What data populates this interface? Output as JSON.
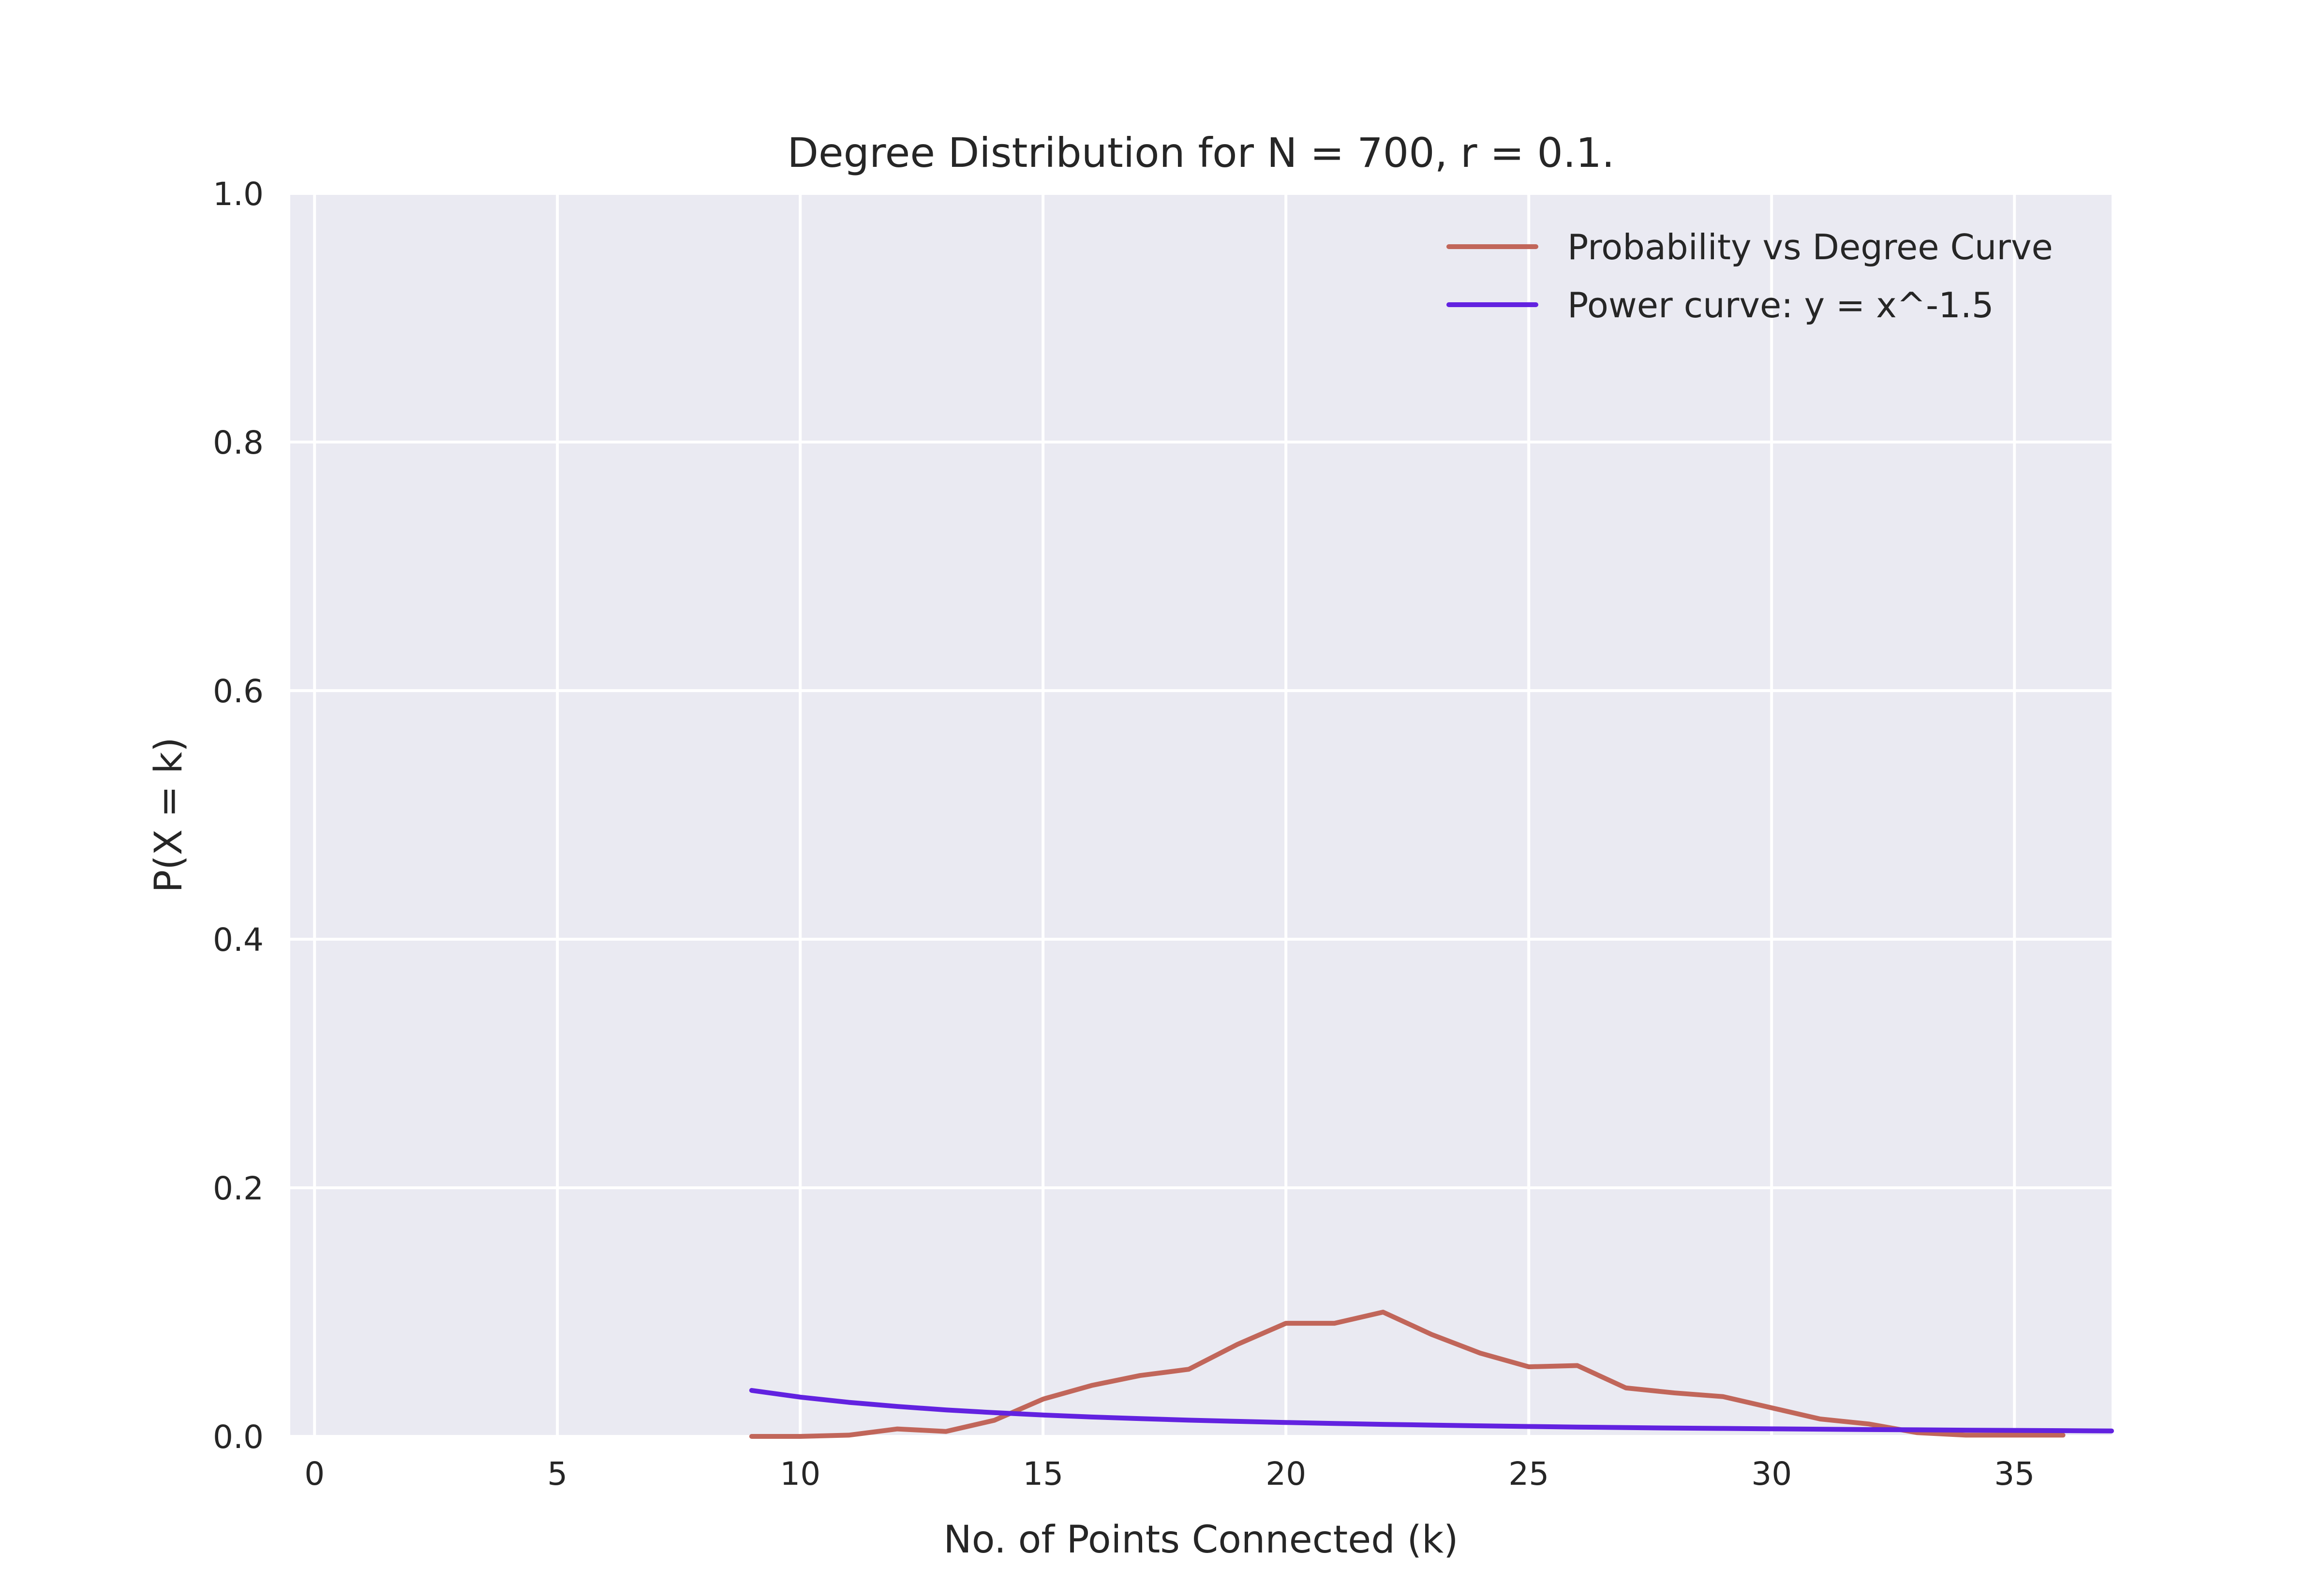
{
  "chart_data": {
    "type": "line",
    "title": "Degree Distribution for N = 700, r = 0.1.",
    "xlabel": "No. of Points Connected (k)",
    "ylabel": "P(X = k)",
    "xlim": [
      -0.5,
      37
    ],
    "ylim": [
      0,
      1.0
    ],
    "xticks": [
      0,
      5,
      10,
      15,
      20,
      25,
      30,
      35
    ],
    "xtick_labels": [
      "0",
      "5",
      "10",
      "15",
      "20",
      "25",
      "30",
      "35"
    ],
    "yticks": [
      0,
      0.2,
      0.4,
      0.6,
      0.8,
      1.0
    ],
    "ytick_labels": [
      "0.0",
      "0.2",
      "0.4",
      "0.6",
      "0.8",
      "1.0"
    ],
    "grid": true,
    "legend_position": "top-right",
    "background": "#EAEAF2",
    "series": [
      {
        "name": "Probability vs Degree Curve",
        "color": "#C1665A",
        "x": [
          9,
          10,
          11,
          12,
          13,
          14,
          15,
          16,
          17,
          18,
          19,
          20,
          21,
          22,
          23,
          24,
          25,
          26,
          27,
          28,
          29,
          30,
          31,
          32,
          33,
          34,
          35,
          36
        ],
        "y": [
          0.0,
          0.0,
          0.001,
          0.006,
          0.004,
          0.013,
          0.03,
          0.041,
          0.049,
          0.054,
          0.074,
          0.091,
          0.091,
          0.1,
          0.082,
          0.067,
          0.056,
          0.057,
          0.039,
          0.035,
          0.032,
          0.023,
          0.014,
          0.01,
          0.003,
          0.001,
          0.001,
          0.001
        ]
      },
      {
        "name": "Power curve: y = x^-1.5",
        "color": "#6222E0",
        "x": [
          9,
          10,
          11,
          12,
          13,
          14,
          15,
          16,
          17,
          18,
          19,
          20,
          21,
          22,
          23,
          24,
          25,
          26,
          27,
          28,
          29,
          30,
          31,
          32,
          33,
          34,
          35,
          36,
          37
        ],
        "y": [
          0.037,
          0.0316,
          0.0274,
          0.0241,
          0.0213,
          0.0191,
          0.0172,
          0.0156,
          0.0143,
          0.0131,
          0.0121,
          0.0112,
          0.0104,
          0.0097,
          0.0091,
          0.0085,
          0.008,
          0.0075,
          0.0071,
          0.0067,
          0.0064,
          0.0061,
          0.0058,
          0.0055,
          0.0053,
          0.005,
          0.0048,
          0.0046,
          0.0044
        ]
      }
    ]
  }
}
